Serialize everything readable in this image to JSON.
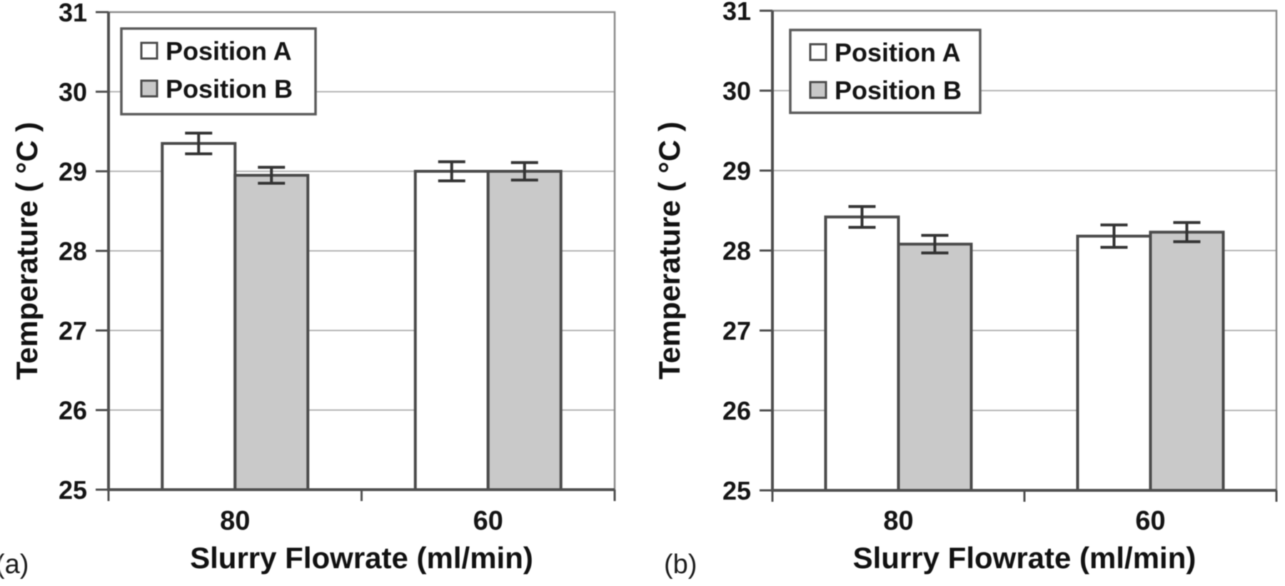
{
  "figure": {
    "panels": [
      {
        "label": "(a)"
      },
      {
        "label": "(b)"
      }
    ]
  },
  "colors": {
    "background": "#ffffff",
    "frame": "#8a8a8a",
    "axis": "#4f4f4f",
    "gridline": "#b4b4b4",
    "bar_border": "#4a4a4a",
    "error_bar": "#333333",
    "text": "#141414",
    "position_a_fill": "#ffffff",
    "position_b_fill": "#c9c9c9",
    "legend_border": "#5a5a5a",
    "legend_fill": "#ffffff"
  },
  "chart_data": [
    {
      "type": "bar",
      "panel_label": "(a)",
      "categories": [
        "80",
        "60"
      ],
      "series": [
        {
          "name": "Position A",
          "values": [
            29.35,
            29.0
          ],
          "errors": [
            0.13,
            0.12
          ]
        },
        {
          "name": "Position B",
          "values": [
            28.95,
            29.0
          ],
          "errors": [
            0.1,
            0.11
          ]
        }
      ],
      "xlabel": "Slurry Flowrate (ml/min)",
      "ylabel": "Temperature ( °C )",
      "ylim": [
        25,
        31
      ],
      "yticks": [
        31,
        30,
        29,
        28,
        27,
        26,
        25
      ],
      "grid": true,
      "legend_position": "top-left",
      "legend_entries": [
        "Position A",
        "Position B"
      ]
    },
    {
      "type": "bar",
      "panel_label": "(b)",
      "categories": [
        "80",
        "60"
      ],
      "series": [
        {
          "name": "Position A",
          "values": [
            28.42,
            28.18
          ],
          "errors": [
            0.13,
            0.14
          ]
        },
        {
          "name": "Position B",
          "values": [
            28.08,
            28.23
          ],
          "errors": [
            0.11,
            0.12
          ]
        }
      ],
      "xlabel": "Slurry Flowrate (ml/min)",
      "ylabel": "Temperature ( °C )",
      "ylim": [
        25,
        31
      ],
      "yticks": [
        31,
        30,
        29,
        28,
        27,
        26,
        25
      ],
      "grid": true,
      "legend_position": "top-left",
      "legend_entries": [
        "Position A",
        "Position B"
      ]
    }
  ]
}
